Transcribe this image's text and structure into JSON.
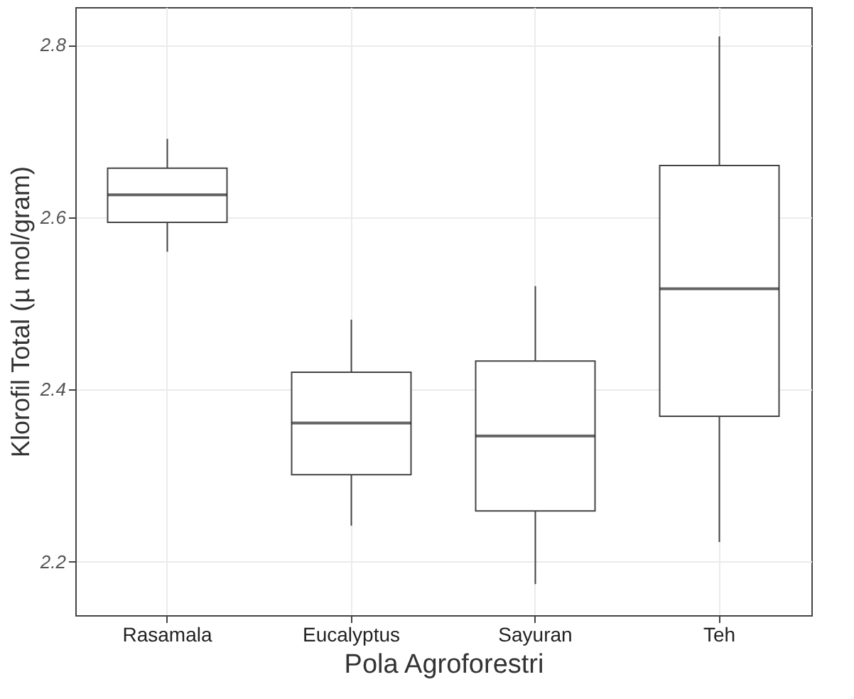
{
  "chart_data": {
    "type": "box",
    "xlabel": "Pola Agroforestri",
    "ylabel": "Klorofil Total (µ mol/gram)",
    "categories": [
      "Rasamala",
      "Eucalyptus",
      "Sayuran",
      "Teh"
    ],
    "boxes": [
      {
        "low": 2.56,
        "q1": 2.594,
        "median": 2.626,
        "q3": 2.657,
        "high": 2.691
      },
      {
        "low": 2.242,
        "q1": 2.301,
        "median": 2.361,
        "q3": 2.42,
        "high": 2.481
      },
      {
        "low": 2.174,
        "q1": 2.259,
        "median": 2.346,
        "q3": 2.433,
        "high": 2.52
      },
      {
        "low": 2.223,
        "q1": 2.369,
        "median": 2.517,
        "q3": 2.66,
        "high": 2.81
      }
    ],
    "ylim": [
      2.138,
      2.844
    ],
    "yticks": [
      2.2,
      2.4,
      2.6,
      2.8
    ],
    "grid": true
  }
}
